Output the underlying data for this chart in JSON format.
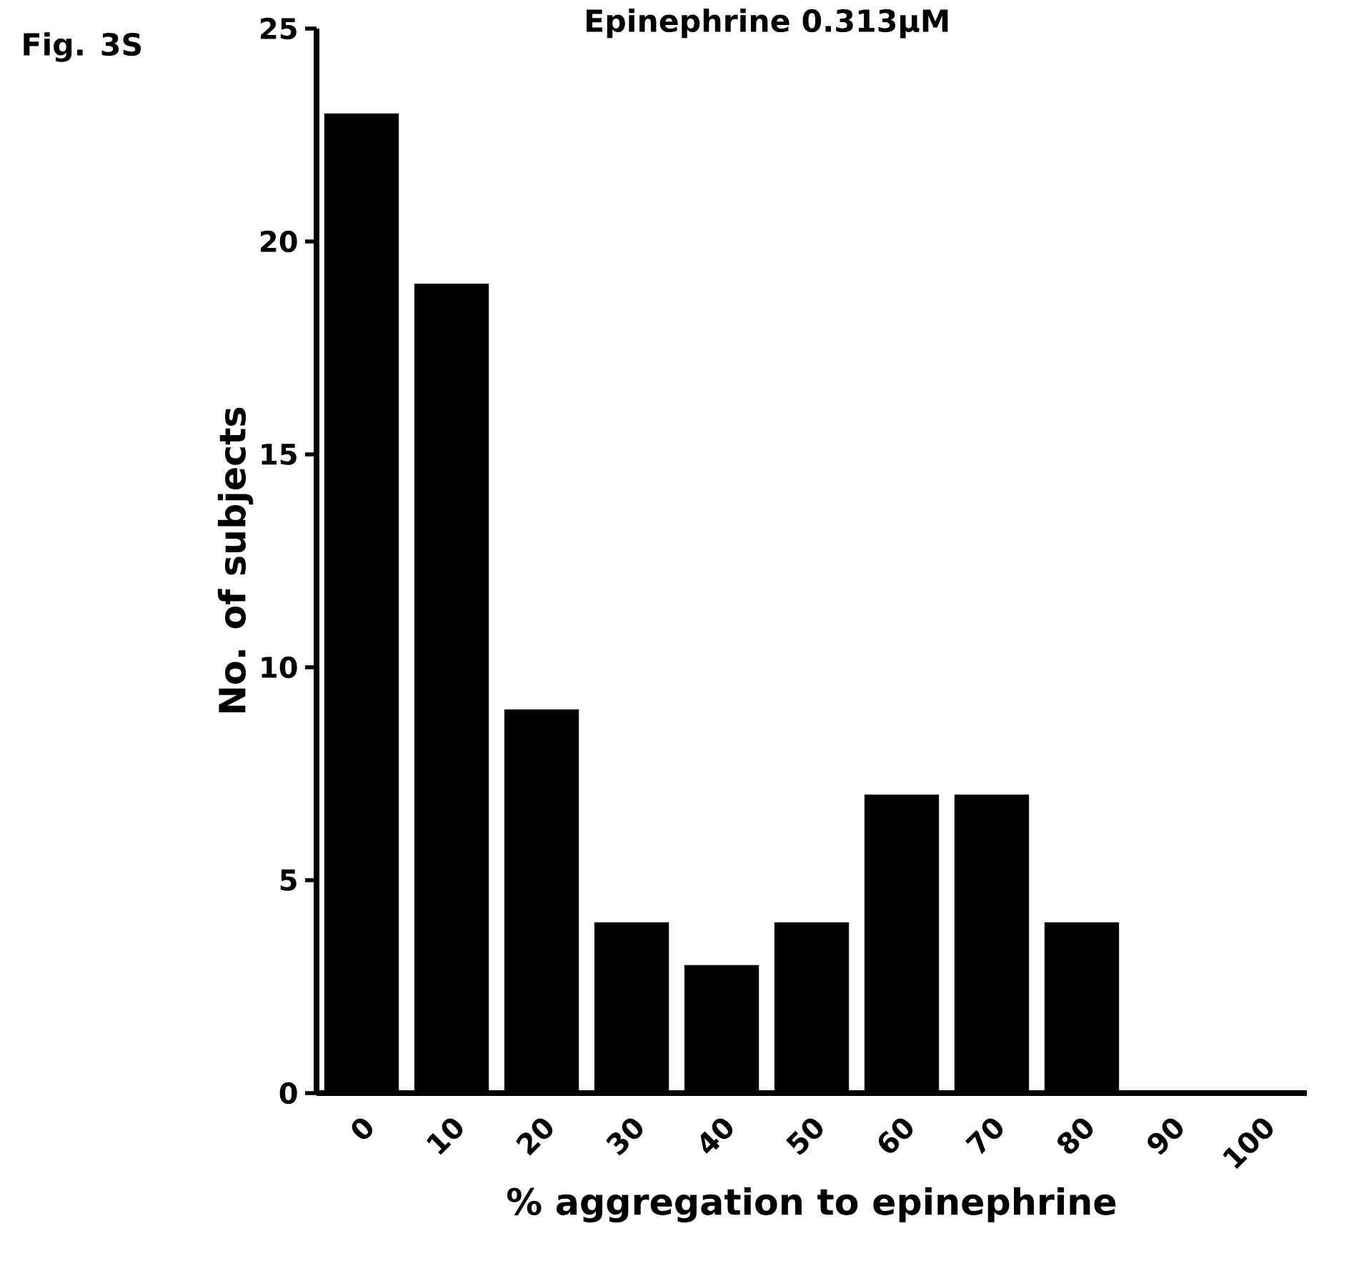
{
  "chart_data": {
    "type": "bar",
    "title": "Epinephrine 0.313μM",
    "xlabel": "% aggregation to epinephrine",
    "ylabel": "No. of subjects",
    "categories": [
      "0",
      "10",
      "20",
      "30",
      "40",
      "50",
      "60",
      "70",
      "80",
      "90",
      "100"
    ],
    "values": [
      23,
      19,
      9,
      4,
      3,
      4,
      7,
      7,
      4,
      0,
      0
    ],
    "color": "#000000",
    "ylim": [
      0,
      25
    ],
    "yticks": [
      0,
      5,
      10,
      15,
      20,
      25
    ],
    "annotations": [
      "Fig. 3S"
    ]
  }
}
